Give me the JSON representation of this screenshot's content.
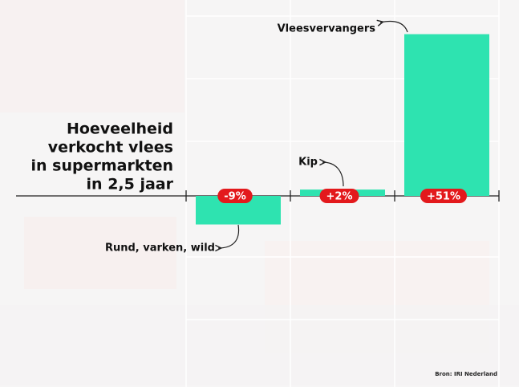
{
  "chart_data": {
    "type": "bar",
    "title": [
      "Hoeveelheid",
      "verkocht vlees",
      "in supermarkten",
      "in 2,5 jaar"
    ],
    "categories": [
      "Rund, varken, wild",
      "Kip",
      "Vleesvervangers"
    ],
    "values": [
      -9,
      2,
      51
    ],
    "value_labels": [
      "-9%",
      "+2%",
      "+51%"
    ],
    "color": "#2ee3b0",
    "label_color": "#e3191c",
    "source": "Bron: IRI Nederland"
  }
}
